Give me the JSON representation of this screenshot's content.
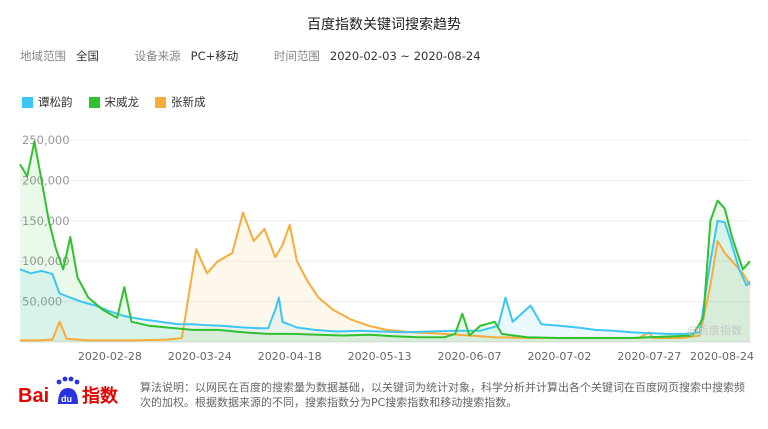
{
  "title": "百度指数关键词搜索趋势",
  "filters": {
    "region_label": "地域范围",
    "region_value": "全国",
    "device_label": "设备来源",
    "device_value": "PC+移动",
    "time_label": "时间范围",
    "time_value": "2020-02-03 ~ 2020-08-24"
  },
  "watermark": "@百度指数",
  "footer": {
    "note": "算法说明：以网民在百度的搜索量为数据基础，以关键词为统计对象，科学分析并计算出各个关键词在百度网页搜索中搜索频次的加权。根据数据来源的不同，搜索指数分为PC搜索指数和移动搜索指数。",
    "logo_text_1": "Bai",
    "logo_text_2": "du",
    "logo_text_3": "指数"
  },
  "colors": {
    "s1": "#3ec6f2",
    "s2": "#2fc12f",
    "s3": "#f7ac3c",
    "grid": "#eeeeee",
    "axis_text": "#999999"
  },
  "chart_data": {
    "type": "line",
    "x_ticks": [
      "2020-02-28",
      "2020-03-24",
      "2020-04-18",
      "2020-05-13",
      "2020-06-07",
      "2020-07-02",
      "2020-07-27",
      "2020-08-24"
    ],
    "y_ticks": [
      "50,000",
      "100,000",
      "150,000",
      "200,000",
      "250,000"
    ],
    "ylim": [
      0,
      250000
    ],
    "x_range": [
      "2020-02-03",
      "2020-08-24"
    ],
    "series": [
      {
        "name": "谭松韵",
        "color": "#3ec6f2",
        "points": [
          [
            "2020-02-03",
            90000
          ],
          [
            "2020-02-06",
            85000
          ],
          [
            "2020-02-09",
            88000
          ],
          [
            "2020-02-12",
            84000
          ],
          [
            "2020-02-14",
            60000
          ],
          [
            "2020-02-17",
            55000
          ],
          [
            "2020-02-20",
            50000
          ],
          [
            "2020-02-24",
            45000
          ],
          [
            "2020-02-28",
            38000
          ],
          [
            "2020-03-03",
            32000
          ],
          [
            "2020-03-08",
            28000
          ],
          [
            "2020-03-13",
            25000
          ],
          [
            "2020-03-18",
            22000
          ],
          [
            "2020-03-22",
            22000
          ],
          [
            "2020-03-25",
            21000
          ],
          [
            "2020-03-30",
            20000
          ],
          [
            "2020-04-05",
            18000
          ],
          [
            "2020-04-10",
            17000
          ],
          [
            "2020-04-12",
            17000
          ],
          [
            "2020-04-14",
            40000
          ],
          [
            "2020-04-15",
            55000
          ],
          [
            "2020-04-16",
            25000
          ],
          [
            "2020-04-20",
            18000
          ],
          [
            "2020-04-25",
            15000
          ],
          [
            "2020-05-01",
            13000
          ],
          [
            "2020-05-08",
            14000
          ],
          [
            "2020-05-13",
            13000
          ],
          [
            "2020-05-20",
            12000
          ],
          [
            "2020-05-27",
            13000
          ],
          [
            "2020-06-03",
            14000
          ],
          [
            "2020-06-10",
            14000
          ],
          [
            "2020-06-15",
            20000
          ],
          [
            "2020-06-17",
            55000
          ],
          [
            "2020-06-19",
            25000
          ],
          [
            "2020-06-24",
            45000
          ],
          [
            "2020-06-27",
            22000
          ],
          [
            "2020-07-02",
            20000
          ],
          [
            "2020-07-07",
            18000
          ],
          [
            "2020-07-12",
            15000
          ],
          [
            "2020-07-17",
            14000
          ],
          [
            "2020-07-22",
            12000
          ],
          [
            "2020-07-27",
            11000
          ],
          [
            "2020-08-01",
            10000
          ],
          [
            "2020-08-06",
            10000
          ],
          [
            "2020-08-10",
            12000
          ],
          [
            "2020-08-13",
            100000
          ],
          [
            "2020-08-15",
            150000
          ],
          [
            "2020-08-17",
            148000
          ],
          [
            "2020-08-19",
            120000
          ],
          [
            "2020-08-21",
            90000
          ],
          [
            "2020-08-23",
            70000
          ],
          [
            "2020-08-24",
            75000
          ]
        ]
      },
      {
        "name": "宋威龙",
        "color": "#2fc12f",
        "points": [
          [
            "2020-02-03",
            220000
          ],
          [
            "2020-02-05",
            205000
          ],
          [
            "2020-02-07",
            248000
          ],
          [
            "2020-02-09",
            200000
          ],
          [
            "2020-02-11",
            150000
          ],
          [
            "2020-02-13",
            115000
          ],
          [
            "2020-02-15",
            90000
          ],
          [
            "2020-02-17",
            130000
          ],
          [
            "2020-02-19",
            80000
          ],
          [
            "2020-02-22",
            55000
          ],
          [
            "2020-02-26",
            40000
          ],
          [
            "2020-03-01",
            30000
          ],
          [
            "2020-03-03",
            68000
          ],
          [
            "2020-03-05",
            25000
          ],
          [
            "2020-03-10",
            20000
          ],
          [
            "2020-03-15",
            18000
          ],
          [
            "2020-03-22",
            15000
          ],
          [
            "2020-03-29",
            15000
          ],
          [
            "2020-04-05",
            12000
          ],
          [
            "2020-04-12",
            10000
          ],
          [
            "2020-04-19",
            10000
          ],
          [
            "2020-04-26",
            9000
          ],
          [
            "2020-05-03",
            8000
          ],
          [
            "2020-05-10",
            9000
          ],
          [
            "2020-05-17",
            7000
          ],
          [
            "2020-05-24",
            6000
          ],
          [
            "2020-05-31",
            6000
          ],
          [
            "2020-06-03",
            10000
          ],
          [
            "2020-06-05",
            35000
          ],
          [
            "2020-06-07",
            8000
          ],
          [
            "2020-06-10",
            20000
          ],
          [
            "2020-06-14",
            25000
          ],
          [
            "2020-06-16",
            10000
          ],
          [
            "2020-06-23",
            6000
          ],
          [
            "2020-07-02",
            5000
          ],
          [
            "2020-07-12",
            5000
          ],
          [
            "2020-07-22",
            5000
          ],
          [
            "2020-07-27",
            6000
          ],
          [
            "2020-08-03",
            7000
          ],
          [
            "2020-08-08",
            8000
          ],
          [
            "2020-08-11",
            30000
          ],
          [
            "2020-08-13",
            150000
          ],
          [
            "2020-08-15",
            175000
          ],
          [
            "2020-08-17",
            165000
          ],
          [
            "2020-08-19",
            130000
          ],
          [
            "2020-08-22",
            90000
          ],
          [
            "2020-08-24",
            100000
          ]
        ]
      },
      {
        "name": "张新成",
        "color": "#f7ac3c",
        "points": [
          [
            "2020-02-03",
            2000
          ],
          [
            "2020-02-08",
            2000
          ],
          [
            "2020-02-12",
            3000
          ],
          [
            "2020-02-14",
            25000
          ],
          [
            "2020-02-16",
            4000
          ],
          [
            "2020-02-22",
            2000
          ],
          [
            "2020-03-05",
            2000
          ],
          [
            "2020-03-15",
            3000
          ],
          [
            "2020-03-19",
            5000
          ],
          [
            "2020-03-21",
            60000
          ],
          [
            "2020-03-23",
            115000
          ],
          [
            "2020-03-26",
            85000
          ],
          [
            "2020-03-29",
            100000
          ],
          [
            "2020-04-02",
            110000
          ],
          [
            "2020-04-05",
            160000
          ],
          [
            "2020-04-08",
            125000
          ],
          [
            "2020-04-11",
            140000
          ],
          [
            "2020-04-14",
            105000
          ],
          [
            "2020-04-16",
            120000
          ],
          [
            "2020-04-18",
            145000
          ],
          [
            "2020-04-20",
            100000
          ],
          [
            "2020-04-23",
            75000
          ],
          [
            "2020-04-26",
            55000
          ],
          [
            "2020-04-30",
            40000
          ],
          [
            "2020-05-05",
            28000
          ],
          [
            "2020-05-10",
            20000
          ],
          [
            "2020-05-15",
            15000
          ],
          [
            "2020-05-22",
            12000
          ],
          [
            "2020-05-31",
            10000
          ],
          [
            "2020-06-07",
            8000
          ],
          [
            "2020-06-14",
            6000
          ],
          [
            "2020-06-24",
            5000
          ],
          [
            "2020-07-04",
            5000
          ],
          [
            "2020-07-14",
            5000
          ],
          [
            "2020-07-24",
            5000
          ],
          [
            "2020-07-27",
            12000
          ],
          [
            "2020-07-28",
            5000
          ],
          [
            "2020-08-05",
            5000
          ],
          [
            "2020-08-10",
            8000
          ],
          [
            "2020-08-13",
            70000
          ],
          [
            "2020-08-15",
            125000
          ],
          [
            "2020-08-17",
            110000
          ],
          [
            "2020-08-19",
            100000
          ],
          [
            "2020-08-22",
            85000
          ],
          [
            "2020-08-24",
            70000
          ]
        ]
      }
    ]
  }
}
